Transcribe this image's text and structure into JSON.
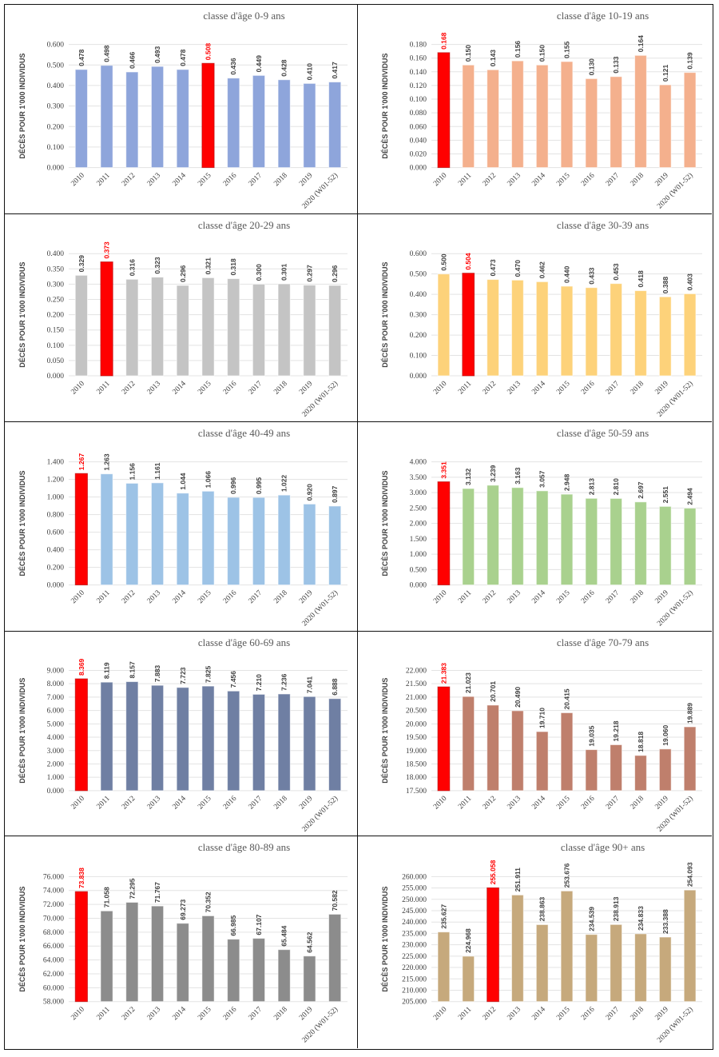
{
  "colors": {
    "highlight": "#ff0000"
  },
  "chart_data": [
    {
      "type": "bar",
      "title": "classe d'âge 0-9 ans",
      "ylabel": "DÉCÈS POUR 1'000 INDIVIDUS",
      "ylim": [
        0,
        0.6
      ],
      "ystep": 0.1,
      "decimals": 3,
      "color": "#8ea5db",
      "highlight_index": 5,
      "categories": [
        "2010",
        "2011",
        "2012",
        "2013",
        "2014",
        "2015",
        "2016",
        "2017",
        "2018",
        "2019",
        "2020 (W01-52)"
      ],
      "values": [
        0.478,
        0.498,
        0.466,
        0.493,
        0.478,
        0.508,
        0.436,
        0.449,
        0.428,
        0.41,
        0.417
      ]
    },
    {
      "type": "bar",
      "title": "classe d'âge 10-19 ans",
      "ylabel": "DÉCÈS POUR 1'000 INDIVIDUS",
      "ylim": [
        0,
        0.18
      ],
      "ystep": 0.02,
      "decimals": 3,
      "color": "#f4b08d",
      "highlight_index": 0,
      "categories": [
        "2010",
        "2011",
        "2012",
        "2013",
        "2014",
        "2015",
        "2016",
        "2017",
        "2018",
        "2019",
        "2020 (W01-52)"
      ],
      "values": [
        0.168,
        0.15,
        0.143,
        0.156,
        0.15,
        0.155,
        0.13,
        0.133,
        0.164,
        0.121,
        0.139
      ]
    },
    {
      "type": "bar",
      "title": "classe d'âge 20-29 ans",
      "ylabel": "DÉCÈS POUR 1'000 INDIVIDUS",
      "ylim": [
        0,
        0.4
      ],
      "ystep": 0.05,
      "decimals": 3,
      "color": "#c4c4c4",
      "highlight_index": 1,
      "categories": [
        "2010",
        "2011",
        "2012",
        "2013",
        "2014",
        "2015",
        "2016",
        "2017",
        "2018",
        "2019",
        "2020 (W01-52)"
      ],
      "values": [
        0.329,
        0.373,
        0.316,
        0.323,
        0.296,
        0.321,
        0.318,
        0.3,
        0.301,
        0.297,
        0.296
      ]
    },
    {
      "type": "bar",
      "title": "classe d'âge 30-39 ans",
      "ylabel": "DÉCÈS POUR 1'000 INDIVIDUS",
      "ylim": [
        0,
        0.6
      ],
      "ystep": 0.1,
      "decimals": 3,
      "color": "#fdd27a",
      "highlight_index": 1,
      "categories": [
        "2010",
        "2011",
        "2012",
        "2013",
        "2014",
        "2015",
        "2016",
        "2017",
        "2018",
        "2019",
        "2020 (W01-52)"
      ],
      "values": [
        0.5,
        0.504,
        0.473,
        0.47,
        0.462,
        0.44,
        0.433,
        0.453,
        0.418,
        0.388,
        0.403
      ]
    },
    {
      "type": "bar",
      "title": "classe d'âge 40-49 ans",
      "ylabel": "DÉCÈS POUR 1'000 INDIVIDUS",
      "ylim": [
        0,
        1.4
      ],
      "ystep": 0.2,
      "decimals": 3,
      "color": "#9dc3e6",
      "highlight_index": 0,
      "categories": [
        "2010",
        "2011",
        "2012",
        "2013",
        "2014",
        "2015",
        "2016",
        "2017",
        "2018",
        "2019",
        "2020 (W01-52)"
      ],
      "values": [
        1.267,
        1.263,
        1.156,
        1.161,
        1.044,
        1.066,
        0.996,
        0.995,
        1.022,
        0.92,
        0.897
      ]
    },
    {
      "type": "bar",
      "title": "classe d'âge 50-59 ans",
      "ylabel": "DÉCÈS POUR 1'000 INDIVIDUS",
      "ylim": [
        0,
        4.0
      ],
      "ystep": 0.5,
      "decimals": 3,
      "color": "#a9d18e",
      "highlight_index": 0,
      "categories": [
        "2010",
        "2011",
        "2012",
        "2013",
        "2014",
        "2015",
        "2016",
        "2017",
        "2018",
        "2019",
        "2020 (W01-52)"
      ],
      "values": [
        3.351,
        3.132,
        3.239,
        3.163,
        3.057,
        2.948,
        2.813,
        2.81,
        2.697,
        2.551,
        2.494
      ]
    },
    {
      "type": "bar",
      "title": "classe d'âge 60-69 ans",
      "ylabel": "DÉCÈS POUR 1'000 INDIVIDUS",
      "ylim": [
        0,
        9.0
      ],
      "ystep": 1,
      "decimals": 3,
      "color": "#6f7fa3",
      "highlight_index": 0,
      "categories": [
        "2010",
        "2011",
        "2012",
        "2013",
        "2014",
        "2015",
        "2016",
        "2017",
        "2018",
        "2019",
        "2020 (W01-52)"
      ],
      "values": [
        8.369,
        8.119,
        8.157,
        7.883,
        7.723,
        7.825,
        7.456,
        7.21,
        7.236,
        7.041,
        6.888
      ]
    },
    {
      "type": "bar",
      "title": "classe d'âge 70-79 ans",
      "ylabel": "DÉCÈS POUR 1'000 INDIVIDUS",
      "ylim": [
        17.5,
        22.0
      ],
      "ystep": 0.5,
      "decimals": 3,
      "color": "#bf7f6c",
      "highlight_index": 0,
      "categories": [
        "2010",
        "2011",
        "2012",
        "2013",
        "2014",
        "2015",
        "2016",
        "2017",
        "2018",
        "2019",
        "2020 (W01-52)"
      ],
      "values": [
        21.383,
        21.023,
        20.701,
        20.49,
        19.71,
        20.415,
        19.035,
        19.218,
        18.818,
        19.06,
        19.889
      ]
    },
    {
      "type": "bar",
      "title": "classe d'âge 80-89 ans",
      "ylabel": "DÉCÈS POUR 1'000 INDIVIDUS",
      "ylim": [
        58,
        76
      ],
      "ystep": 2,
      "decimals": 3,
      "color": "#8c8c8c",
      "highlight_index": 0,
      "categories": [
        "2010",
        "2011",
        "2012",
        "2013",
        "2014",
        "2015",
        "2016",
        "2017",
        "2018",
        "2019",
        "2020 (W01-52)"
      ],
      "values": [
        73.838,
        71.058,
        72.295,
        71.767,
        69.273,
        70.352,
        66.985,
        67.107,
        65.484,
        64.562,
        70.582
      ]
    },
    {
      "type": "bar",
      "title": "classe d'âge 90+ ans",
      "ylabel": "DÉCÈS POUR 1'000 INDIVIDUS",
      "ylim": [
        205,
        260
      ],
      "ystep": 5,
      "decimals": 3,
      "color": "#c6a97c",
      "highlight_index": 2,
      "categories": [
        "2010",
        "2011",
        "2012",
        "2013",
        "2014",
        "2015",
        "2016",
        "2017",
        "2018",
        "2019",
        "2020 (W01-52)"
      ],
      "values": [
        235.627,
        224.968,
        255.058,
        251.911,
        238.863,
        253.676,
        234.539,
        238.913,
        234.833,
        233.388,
        254.093
      ]
    }
  ]
}
